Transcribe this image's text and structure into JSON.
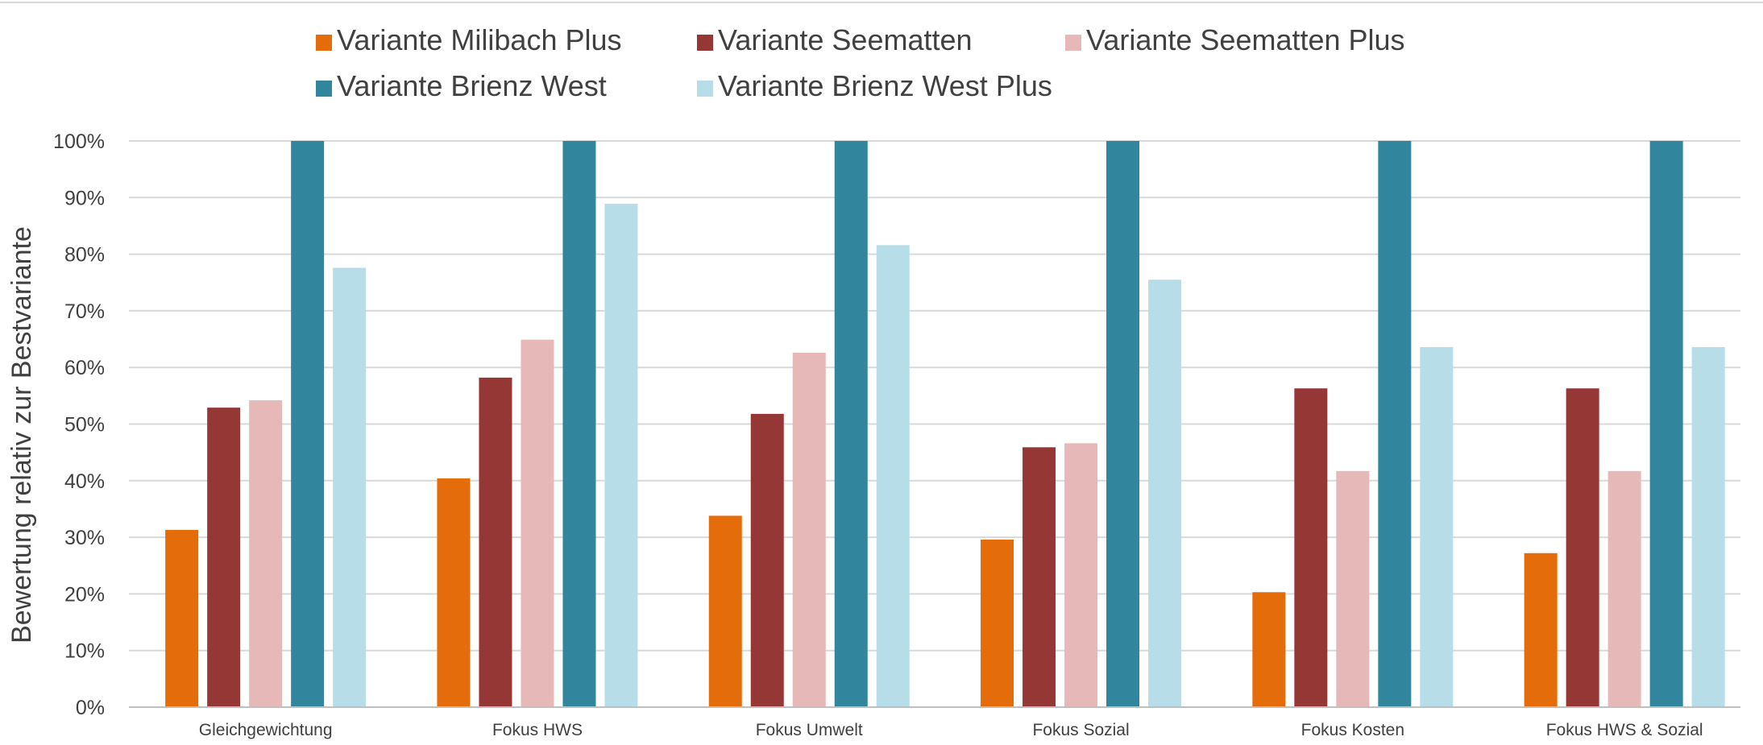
{
  "chart_data": {
    "type": "bar",
    "title": "",
    "xlabel": "",
    "ylabel": "Bewertung relativ zur Bestvariante",
    "ylim": [
      0,
      100
    ],
    "y_tick_step": 10,
    "y_tick_suffix": "%",
    "grid": true,
    "legend_position": "top",
    "categories": [
      "Gleichgewichtung",
      "Fokus HWS",
      "Fokus Umwelt",
      "Fokus Sozial",
      "Fokus Kosten",
      "Fokus HWS & Sozial"
    ],
    "series": [
      {
        "name": "Variante Milibach Plus",
        "color": "#E46C0A",
        "values": [
          31.3,
          40.4,
          33.8,
          29.6,
          20.3,
          27.2
        ]
      },
      {
        "name": "Variante Seematten",
        "color": "#953735",
        "values": [
          52.9,
          58.2,
          51.8,
          45.9,
          56.3,
          56.3
        ]
      },
      {
        "name": "Variante Seematten Plus",
        "color": "#E6B9B8",
        "values": [
          54.2,
          64.9,
          62.6,
          46.6,
          41.7,
          41.7
        ]
      },
      {
        "name": "Variante Brienz West",
        "color": "#31859C",
        "values": [
          100,
          100,
          100,
          100,
          100,
          100
        ]
      },
      {
        "name": "Variante Brienz West Plus",
        "color": "#B7DEE8",
        "values": [
          77.6,
          88.9,
          81.6,
          75.5,
          63.6,
          63.6
        ]
      }
    ]
  }
}
